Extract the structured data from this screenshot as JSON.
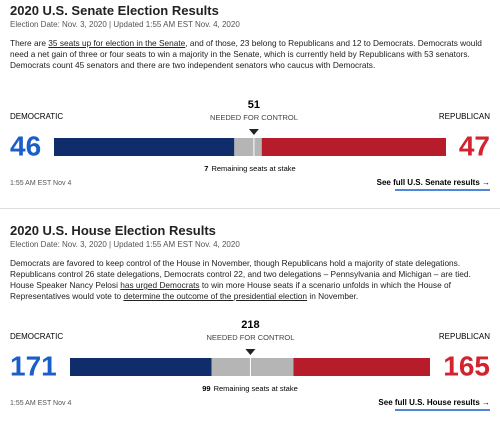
{
  "senate": {
    "title": "2020 U.S. Senate Election Results",
    "meta": "Election Date: Nov. 3, 2020 | Updated 1:55 AM EST Nov. 4, 2020",
    "intro": [
      "There are ",
      "35 seats up for election in the Senate",
      ", and of those, 23 belong to Republicans and 12 to Democrats. Democrats would need a net gain of three or four seats to win a majority in the Senate, which is currently held by Republicans with 53 senators. Democrats count 45 senators and there are two independent senators who caucus with Democrats."
    ],
    "dem_label": "DEMOCRATIC",
    "rep_label": "REPUBLICAN",
    "dem": 46,
    "rep": 47,
    "majority": 51,
    "majority_label": "NEEDED FOR CONTROL",
    "remaining": 7,
    "remaining_label": "Remaining seats at stake",
    "timestamp": "1:55 AM EST Nov 4",
    "link": "See full U.S. Senate results →"
  },
  "house": {
    "title": "2020 U.S. House Election Results",
    "meta": "Election Date: Nov. 3, 2020 | Updated 1:55 AM EST Nov. 4, 2020",
    "intro": [
      "Democrats are favored to keep control of the House in November, though Republicans hold a majority of state delegations. Republicans control 26 state delegations, Democrats control 22, and two delegations – Pennsylvania and Michigan – are tied. House Speaker Nancy Pelosi ",
      "has urged Democrats",
      " to win more House seats if a scenario unfolds in which the House of Representatives would vote to ",
      "determine the outcome of the presidential election",
      " in November."
    ],
    "dem_label": "DEMOCRATIC",
    "rep_label": "REPUBLICAN",
    "dem": 171,
    "rep": 165,
    "majority": 218,
    "majority_label": "NEEDED FOR CONTROL",
    "remaining": 99,
    "remaining_label": "Remaining seats at stake",
    "timestamp": "1:55 AM EST Nov 4",
    "link": "See full U.S. House results →"
  }
}
